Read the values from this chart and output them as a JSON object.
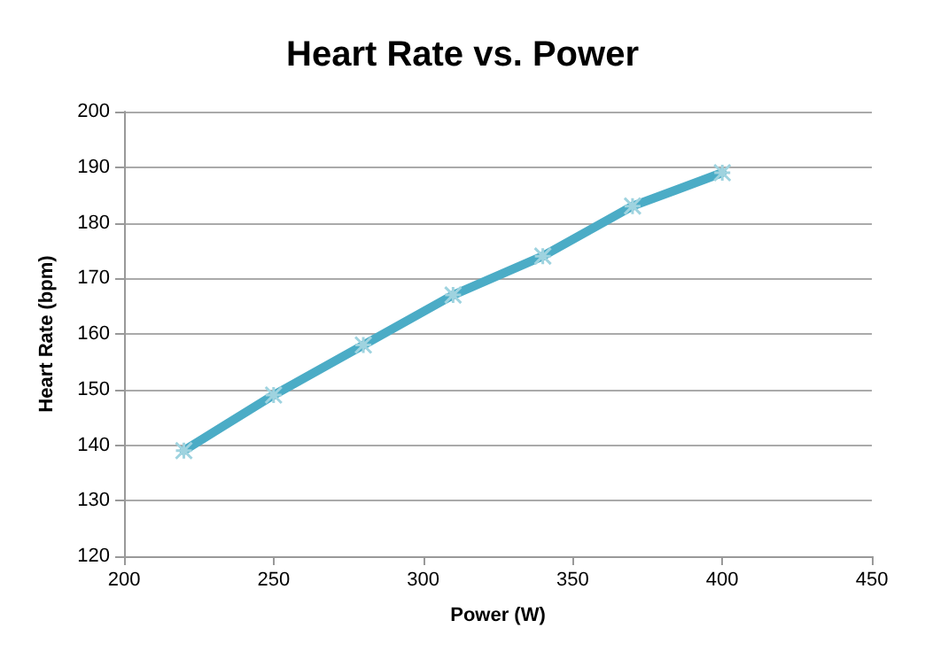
{
  "chart_data": {
    "type": "line",
    "title": "Heart Rate vs. Power",
    "xlabel": "Power (W)",
    "ylabel": "Heart Rate (bpm)",
    "x": [
      220,
      250,
      280,
      310,
      340,
      370,
      400
    ],
    "series": [
      {
        "color": "#4bacc6",
        "values": [
          139,
          149,
          158,
          167,
          174,
          183,
          189
        ]
      }
    ],
    "xlim": [
      200,
      450
    ],
    "xticks": [
      200,
      250,
      300,
      350,
      400,
      450
    ],
    "ylim": [
      120,
      200
    ],
    "yticks": [
      120,
      130,
      140,
      150,
      160,
      170,
      180,
      190,
      200
    ],
    "grid": "y",
    "marker": "cross",
    "line_style": "solid"
  }
}
